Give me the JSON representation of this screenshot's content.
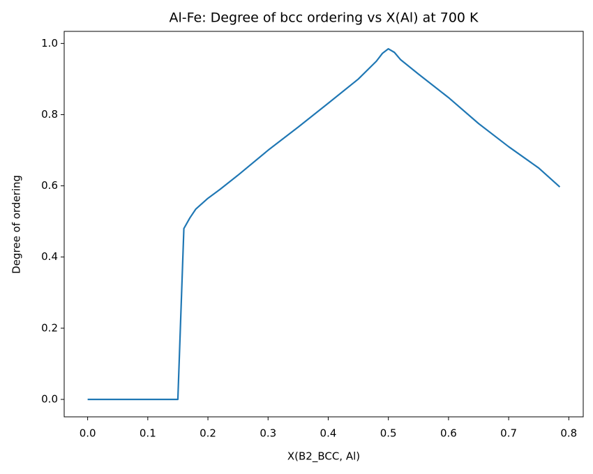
{
  "chart_data": {
    "type": "line",
    "title": "Al-Fe: Degree of bcc ordering vs X(Al) at 700 K",
    "x_label": "X(B2_BCC, Al)",
    "y_label": "Degree of ordering",
    "x": [
      0,
      0.05,
      0.1,
      0.15,
      0.16,
      0.17,
      0.18,
      0.2,
      0.22,
      0.25,
      0.3,
      0.35,
      0.4,
      0.45,
      0.48,
      0.49,
      0.5,
      0.51,
      0.52,
      0.55,
      0.6,
      0.65,
      0.7,
      0.75,
      0.785
    ],
    "series": [
      {
        "name": "Degree of ordering",
        "color": "#1f77b4",
        "values": [
          0,
          0,
          0,
          0,
          0.48,
          0.51,
          0.535,
          0.565,
          0.59,
          0.63,
          0.7,
          0.765,
          0.832,
          0.9,
          0.95,
          0.972,
          0.985,
          0.975,
          0.955,
          0.914,
          0.848,
          0.775,
          0.71,
          0.65,
          0.597
        ]
      }
    ],
    "xlim": [
      -0.039,
      0.824
    ],
    "ylim": [
      -0.049,
      1.034
    ],
    "xticks": [
      {
        "value": 0,
        "label": "0.0"
      },
      0.1,
      0.2,
      0.3,
      0.4,
      0.5,
      0.6,
      0.7,
      0.8
    ],
    "yticks": [
      {
        "value": 0,
        "label": "0.0"
      },
      0.2,
      0.4,
      0.6,
      0.8,
      {
        "value": 1,
        "label": "1.0"
      }
    ],
    "grid": false
  }
}
